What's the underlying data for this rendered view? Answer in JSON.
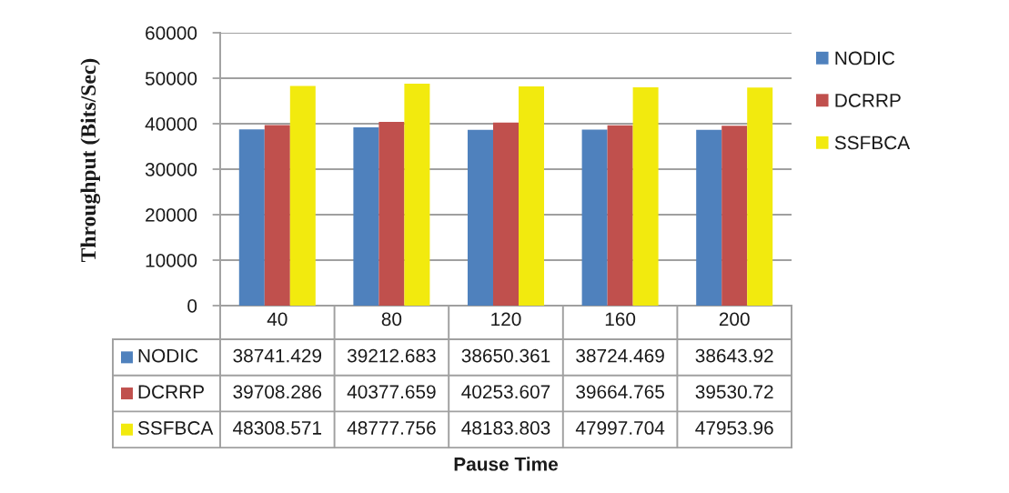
{
  "chart_data": {
    "type": "bar",
    "ylabel": "Throughput (Bits/Sec)",
    "categories": [
      "40",
      "80",
      "120",
      "160",
      "200"
    ],
    "series": [
      {
        "name": "NODIC",
        "color": "#4f81bd",
        "values": [
          38741.429,
          39212.683,
          38650.361,
          38724.469,
          38643.92
        ]
      },
      {
        "name": "DCRRP",
        "color": "#c0504d",
        "values": [
          39708.286,
          40377.659,
          40253.607,
          39664.765,
          39530.72
        ]
      },
      {
        "name": "SSFBCA",
        "color": "#f2ea0e",
        "values": [
          48308.571,
          48777.756,
          48183.803,
          47997.704,
          47953.96
        ]
      }
    ],
    "ylim": [
      0,
      60000
    ],
    "yticks": [
      0,
      10000,
      20000,
      30000,
      40000,
      50000,
      60000
    ],
    "annotations": [
      "Pause Time"
    ],
    "grid": "y",
    "legend": "right",
    "data_labels": true
  }
}
